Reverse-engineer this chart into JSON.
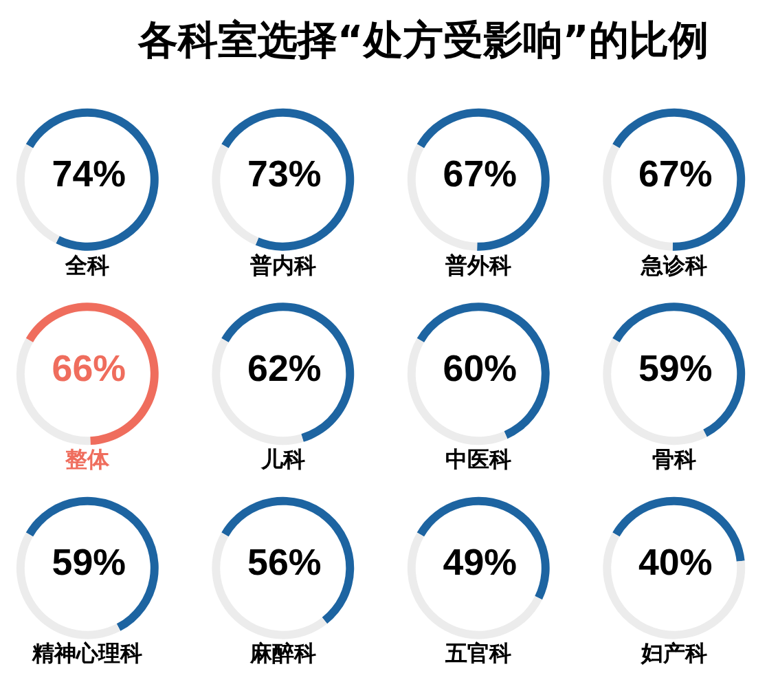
{
  "chart_data": [
    {
      "type": "other",
      "title": "各科室选择“处方受影响”的比例"
    },
    {
      "type": "donut",
      "title": "全科",
      "categories": [
        null,
        null
      ],
      "values": [
        74,
        26
      ],
      "colors": [
        "#1d64a1",
        "#ececec"
      ],
      "value_labels": [
        "74%",
        null
      ]
    },
    {
      "type": "donut",
      "title": "普内科",
      "categories": [
        null,
        null
      ],
      "values": [
        73,
        27
      ],
      "colors": [
        "#1d64a1",
        "#ececec"
      ],
      "value_labels": [
        "73%",
        null
      ]
    },
    {
      "type": "donut",
      "title": "普外科",
      "categories": [
        null,
        null
      ],
      "values": [
        67,
        33
      ],
      "colors": [
        "#1d64a1",
        "#ececec"
      ],
      "value_labels": [
        "67%",
        null
      ]
    },
    {
      "type": "donut",
      "title": "急诊科",
      "categories": [
        null,
        null
      ],
      "values": [
        67,
        33
      ],
      "colors": [
        "#1d64a1",
        "#ececec"
      ],
      "value_labels": [
        "67%",
        null
      ]
    },
    {
      "type": "donut",
      "title": "整体",
      "categories": [
        null,
        null
      ],
      "values": [
        66,
        34
      ],
      "colors": [
        "#ef6d5d",
        "#ececec"
      ],
      "value_labels": [
        "66%",
        null
      ]
    },
    {
      "type": "donut",
      "title": "儿科",
      "categories": [
        null,
        null
      ],
      "values": [
        62,
        38
      ],
      "colors": [
        "#1d64a1",
        "#ececec"
      ],
      "value_labels": [
        "62%",
        null
      ]
    },
    {
      "type": "donut",
      "title": "中医科",
      "categories": [
        null,
        null
      ],
      "values": [
        60,
        40
      ],
      "colors": [
        "#1d64a1",
        "#ececec"
      ],
      "value_labels": [
        "60%",
        null
      ]
    },
    {
      "type": "donut",
      "title": "骨科",
      "categories": [
        null,
        null
      ],
      "values": [
        59,
        41
      ],
      "colors": [
        "#1d64a1",
        "#ececec"
      ],
      "value_labels": [
        "59%",
        null
      ]
    },
    {
      "type": "donut",
      "title": "精神心理科",
      "categories": [
        null,
        null
      ],
      "values": [
        59,
        41
      ],
      "colors": [
        "#1d64a1",
        "#ececec"
      ],
      "value_labels": [
        "59%",
        null
      ]
    },
    {
      "type": "donut",
      "title": "麻醉科",
      "categories": [
        null,
        null
      ],
      "values": [
        56,
        44
      ],
      "colors": [
        "#1d64a1",
        "#ececec"
      ],
      "value_labels": [
        "56%",
        null
      ]
    },
    {
      "type": "donut",
      "title": "五官科",
      "categories": [
        null,
        null
      ],
      "values": [
        49,
        51
      ],
      "colors": [
        "#1d64a1",
        "#ececec"
      ],
      "value_labels": [
        "49%",
        null
      ]
    },
    {
      "type": "donut",
      "title": "妇产科",
      "categories": [
        null,
        null
      ],
      "values": [
        40,
        60
      ],
      "colors": [
        "#1d64a1",
        "#ececec"
      ],
      "value_labels": [
        "40%",
        null
      ]
    }
  ]
}
